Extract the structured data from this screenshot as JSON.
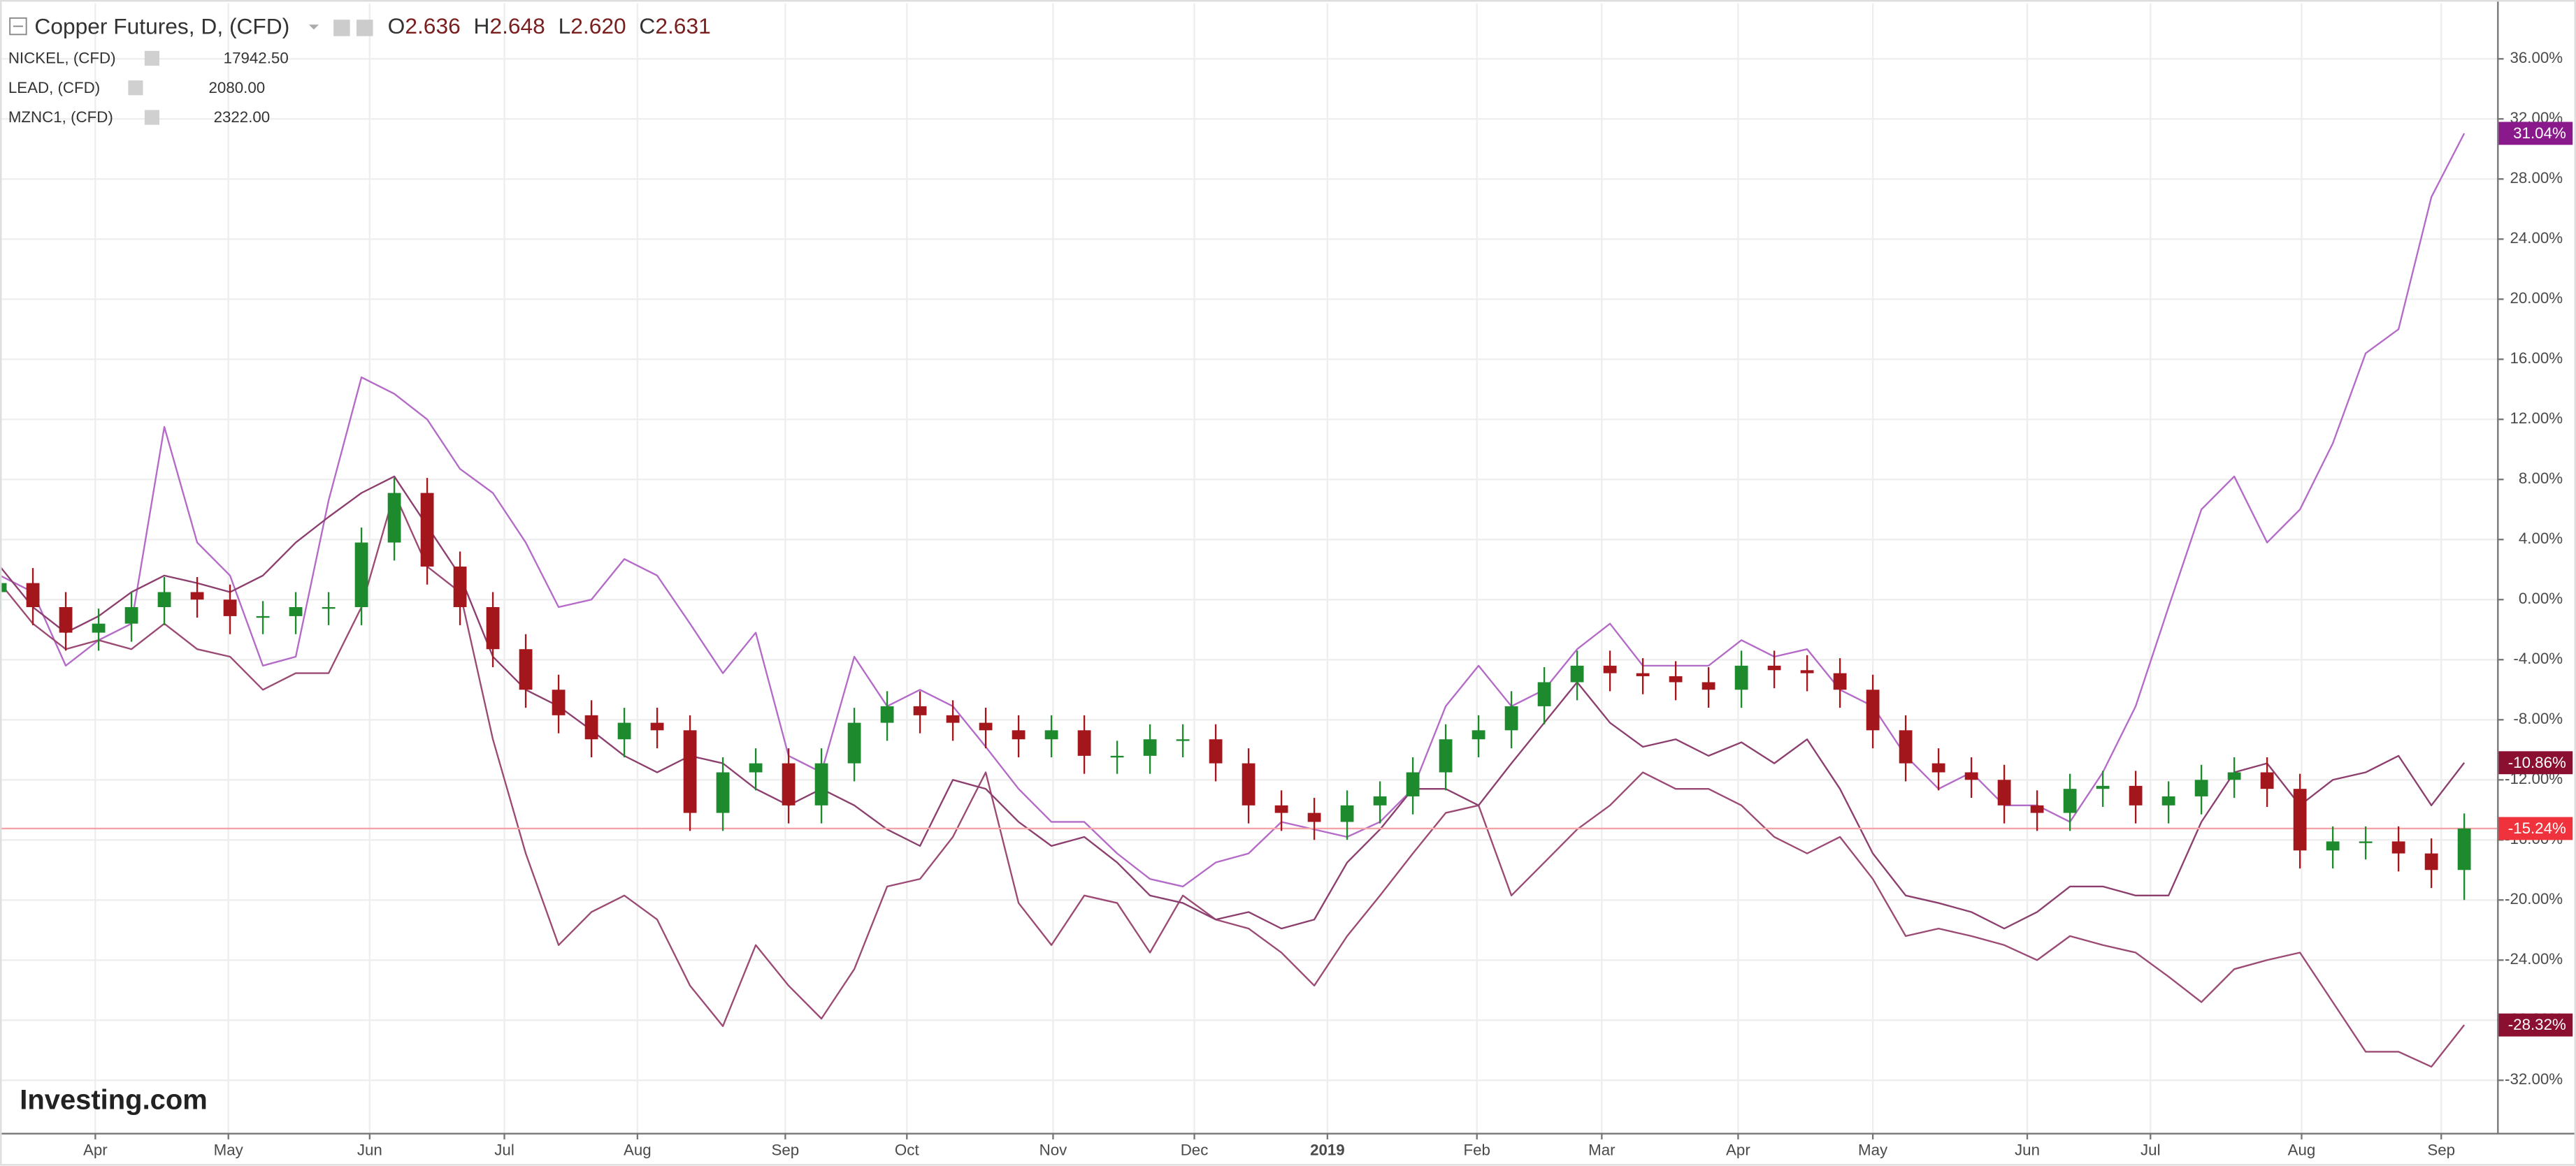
{
  "chart_data": {
    "type": "candlestick",
    "title": "Copper Futures, D, (CFD)",
    "quote": [
      {
        "label": "O",
        "value": "2.636"
      },
      {
        "label": "H",
        "value": "2.648"
      },
      {
        "label": "L",
        "value": "2.620"
      },
      {
        "label": "C",
        "value": "2.631"
      }
    ],
    "watermark": "Investing.com",
    "x": [
      0,
      1,
      2,
      3,
      4,
      5,
      6,
      7,
      8,
      9,
      10,
      11,
      12,
      13,
      14,
      15,
      16,
      17,
      18,
      19,
      20,
      21,
      22,
      23,
      24,
      25,
      26,
      27,
      28,
      29,
      30,
      31,
      32,
      33,
      34,
      35,
      36,
      37,
      38,
      39,
      40,
      41,
      42,
      43,
      44,
      45,
      46,
      47,
      48,
      49,
      50,
      51,
      52,
      53,
      54,
      55,
      56,
      57,
      58,
      59,
      60,
      61,
      62,
      63,
      64,
      65,
      66,
      67,
      68,
      69,
      70,
      71,
      72,
      73,
      74,
      75
    ],
    "xlim": [
      0,
      76
    ],
    "xticks": [
      {
        "value": 2.9,
        "label": "Apr"
      },
      {
        "value": 6.95,
        "label": "May"
      },
      {
        "value": 11.25,
        "label": "Jun"
      },
      {
        "value": 15.35,
        "label": "Jul"
      },
      {
        "value": 19.4,
        "label": "Aug"
      },
      {
        "value": 23.9,
        "label": "Sep"
      },
      {
        "value": 27.6,
        "label": "Oct"
      },
      {
        "value": 32.05,
        "label": "Nov"
      },
      {
        "value": 36.35,
        "label": "Dec"
      },
      {
        "value": 40.4,
        "label": "2019"
      },
      {
        "value": 44.95,
        "label": "Feb"
      },
      {
        "value": 48.75,
        "label": "Mar"
      },
      {
        "value": 52.9,
        "label": "Apr"
      },
      {
        "value": 57,
        "label": "May"
      },
      {
        "value": 61.7,
        "label": "Jun"
      },
      {
        "value": 65.45,
        "label": "Jul"
      },
      {
        "value": 70.05,
        "label": "Aug"
      },
      {
        "value": 74.3,
        "label": "Sep"
      }
    ],
    "ylim": [
      -35.5,
      39.7
    ],
    "yticks": [
      {
        "value": 36,
        "label": "36.00%"
      },
      {
        "value": 32,
        "label": "32.00%"
      },
      {
        "value": 28,
        "label": "28.00%"
      },
      {
        "value": 24,
        "label": "24.00%"
      },
      {
        "value": 20,
        "label": "20.00%"
      },
      {
        "value": 16,
        "label": "16.00%"
      },
      {
        "value": 12,
        "label": "12.00%"
      },
      {
        "value": 8,
        "label": "8.00%"
      },
      {
        "value": 4,
        "label": "4.00%"
      },
      {
        "value": 0,
        "label": "0.00%"
      },
      {
        "value": -4,
        "label": "-4.00%"
      },
      {
        "value": -8,
        "label": "-8.00%"
      },
      {
        "value": -12,
        "label": "-12.00%"
      },
      {
        "value": -16,
        "label": "-16.00%"
      },
      {
        "value": -20,
        "label": "-20.00%"
      },
      {
        "value": -24,
        "label": "-24.00%"
      },
      {
        "value": -28,
        "label": "-28.00%"
      },
      {
        "value": -32,
        "label": "-32.00%"
      }
    ],
    "grid": true,
    "candles": {
      "up_color": "#1e8a2e",
      "down_color": "#a3161c",
      "price_line_color": "#f4a3a8",
      "tag_color": "#f0323c",
      "open": [
        0.5,
        1.1,
        -0.5,
        -2.2,
        -1.6,
        -0.5,
        0.5,
        0,
        -1.1,
        -1.1,
        -0.5,
        -0.5,
        3.8,
        7.1,
        2.2,
        -0.5,
        -3.3,
        -6.0,
        -7.7,
        -9.3,
        -8.2,
        -8.7,
        -14.2,
        -11.5,
        -10.9,
        -13.7,
        -10.9,
        -8.2,
        -7.1,
        -7.7,
        -8.2,
        -8.7,
        -9.3,
        -8.7,
        -10.4,
        -10.4,
        -9.3,
        -9.3,
        -10.9,
        -13.7,
        -14.2,
        -14.8,
        -13.7,
        -13.1,
        -11.5,
        -9.3,
        -8.7,
        -7.1,
        -5.5,
        -4.4,
        -4.9,
        -5.1,
        -5.5,
        -6.0,
        -4.4,
        -4.7,
        -4.9,
        -6.0,
        -8.7,
        -10.9,
        -11.5,
        -12.0,
        -13.7,
        -14.2,
        -12.6,
        -12.4,
        -13.7,
        -13.1,
        -12.0,
        -11.5,
        -12.6,
        -16.7,
        -16.1,
        -16.1,
        -16.9,
        -18.0
      ],
      "high": [
        2.1,
        2.1,
        0.5,
        -0.6,
        0.5,
        1.5,
        1.5,
        1,
        -0.1,
        0.5,
        0.5,
        4.8,
        8.1,
        8.1,
        3.2,
        0.5,
        -2.3,
        -5,
        -6.7,
        -7.2,
        -7.2,
        -7.7,
        -10.5,
        -9.9,
        -9.9,
        -9.9,
        -7.2,
        -6.1,
        -6.1,
        -6.7,
        -7.2,
        -7.7,
        -7.7,
        -7.7,
        -9.4,
        -8.3,
        -8.3,
        -8.3,
        -9.9,
        -12.7,
        -13.2,
        -12.7,
        -12.1,
        -10.5,
        -8.3,
        -7.7,
        -6.1,
        -4.5,
        -3.4,
        -3.4,
        -3.9,
        -4.1,
        -4.5,
        -3.4,
        -3.4,
        -3.7,
        -3.9,
        -5.0,
        -7.7,
        -9.9,
        -10.5,
        -11.0,
        -12.7,
        -11.6,
        -11.4,
        -11.4,
        -12.1,
        -11.0,
        -10.5,
        -10.5,
        -11.6,
        -15.1,
        -15.1,
        -15.1,
        -15.9,
        -14.24
      ],
      "low": [
        -0.7,
        -1.7,
        -3.4,
        -3.4,
        -2.8,
        -1.7,
        -1.2,
        -2.3,
        -2.3,
        -2.3,
        -1.7,
        -1.7,
        2.6,
        1.0,
        -1.7,
        -4.5,
        -7.2,
        -8.9,
        -10.5,
        -10.5,
        -9.9,
        -15.4,
        -15.4,
        -12.7,
        -14.9,
        -14.9,
        -12.1,
        -9.4,
        -8.9,
        -9.4,
        -9.9,
        -10.5,
        -10.5,
        -11.6,
        -11.6,
        -11.6,
        -10.5,
        -12.1,
        -14.9,
        -15.4,
        -16.0,
        -16.0,
        -14.9,
        -14.3,
        -12.7,
        -10.5,
        -9.9,
        -8.3,
        -6.7,
        -6.1,
        -6.3,
        -6.7,
        -7.2,
        -7.2,
        -5.9,
        -6.1,
        -7.2,
        -9.9,
        -12.1,
        -12.7,
        -13.2,
        -14.9,
        -15.4,
        -15.4,
        -13.8,
        -14.9,
        -14.9,
        -14.3,
        -13.2,
        -13.8,
        -17.9,
        -17.9,
        -17.3,
        -18.1,
        -19.2,
        -20.0
      ],
      "close": [
        1.1,
        -0.5,
        -2.2,
        -1.6,
        -0.5,
        0.5,
        0,
        -1.1,
        -1.1,
        -0.5,
        -0.5,
        3.8,
        7.1,
        2.2,
        -0.5,
        -3.3,
        -6.0,
        -7.7,
        -9.3,
        -8.2,
        -8.7,
        -14.2,
        -11.5,
        -10.9,
        -13.7,
        -10.9,
        -8.2,
        -7.1,
        -7.7,
        -8.2,
        -8.7,
        -9.3,
        -8.7,
        -10.4,
        -10.4,
        -9.3,
        -9.3,
        -10.9,
        -13.7,
        -14.2,
        -14.8,
        -13.7,
        -13.1,
        -11.5,
        -9.3,
        -8.7,
        -7.1,
        -5.5,
        -4.4,
        -4.9,
        -5.1,
        -5.5,
        -6.0,
        -4.4,
        -4.7,
        -4.9,
        -6.0,
        -8.7,
        -10.9,
        -11.5,
        -12.0,
        -13.7,
        -14.2,
        -12.6,
        -12.4,
        -13.7,
        -13.1,
        -12.0,
        -11.5,
        -12.6,
        -16.7,
        -16.1,
        -16.1,
        -16.9,
        -18.0,
        -15.24
      ],
      "value_labels": [
        null,
        null,
        null,
        null,
        null,
        null,
        null,
        null,
        null,
        null,
        null,
        null,
        null,
        null,
        null,
        null,
        null,
        null,
        null,
        null,
        null,
        null,
        null,
        null,
        null,
        null,
        null,
        null,
        null,
        null,
        null,
        null,
        null,
        null,
        null,
        null,
        null,
        null,
        null,
        null,
        null,
        null,
        null,
        null,
        null,
        null,
        null,
        null,
        null,
        null,
        null,
        null,
        null,
        null,
        null,
        null,
        null,
        null,
        null,
        null,
        null,
        null,
        null,
        null,
        null,
        null,
        null,
        null,
        null,
        null,
        null,
        null,
        null,
        null,
        null,
        "-15.24%"
      ]
    },
    "series": [
      {
        "name": "NICKEL, (CFD)",
        "price": "17942.50",
        "color": "#b46ac7",
        "tag_color": "#8a1a8c",
        "values": [
          1.6,
          0.5,
          -4.4,
          -2.7,
          -1.6,
          11.5,
          3.8,
          1.6,
          -4.4,
          -3.8,
          6.6,
          14.8,
          13.7,
          12.0,
          8.7,
          7.1,
          3.8,
          -0.5,
          0,
          2.7,
          1.6,
          -1.6,
          -4.9,
          -2.2,
          -10.4,
          -11.5,
          -3.8,
          -7.1,
          -6.0,
          -7.1,
          -9.8,
          -12.6,
          -14.8,
          -14.8,
          -16.9,
          -18.6,
          -19.1,
          -17.5,
          -16.9,
          -14.8,
          -15.3,
          -15.8,
          -14.8,
          -12.6,
          -7.1,
          -4.4,
          -7.1,
          -6.0,
          -3.3,
          -1.6,
          -4.4,
          -4.4,
          -4.4,
          -2.7,
          -3.8,
          -3.3,
          -6.0,
          -7.1,
          -10.4,
          -12.6,
          -11.5,
          -13.7,
          -13.7,
          -14.8,
          -11.5,
          -7.1,
          -0.5,
          6.0,
          8.2,
          3.8,
          6.0,
          10.4,
          16.4,
          18.0,
          26.8,
          31.04
        ],
        "value_labels": [
          null,
          null,
          null,
          null,
          null,
          null,
          null,
          null,
          null,
          null,
          null,
          null,
          null,
          null,
          null,
          null,
          null,
          null,
          null,
          null,
          null,
          null,
          null,
          null,
          null,
          null,
          null,
          null,
          null,
          null,
          null,
          null,
          null,
          null,
          null,
          null,
          null,
          null,
          null,
          null,
          null,
          null,
          null,
          null,
          null,
          null,
          null,
          null,
          null,
          null,
          null,
          null,
          null,
          null,
          null,
          null,
          null,
          null,
          null,
          null,
          null,
          null,
          null,
          null,
          null,
          null,
          null,
          null,
          null,
          null,
          null,
          null,
          null,
          null,
          null,
          "31.04%"
        ]
      },
      {
        "name": "LEAD, (CFD)",
        "price": "2080.00",
        "color": "#9b4a74",
        "tag_color": "#8a0f30",
        "values": [
          1.1,
          -1.6,
          -3.3,
          -2.7,
          -3.3,
          -1.6,
          -3.3,
          -3.8,
          -6.0,
          -4.9,
          -4.9,
          -0.5,
          7.1,
          2.2,
          0.5,
          -9.3,
          -16.9,
          -23.0,
          -20.8,
          -19.7,
          -21.3,
          -25.7,
          -28.4,
          -23.0,
          -25.7,
          -27.9,
          -24.6,
          -19.1,
          -18.6,
          -15.8,
          -11.5,
          -20.2,
          -23.0,
          -19.7,
          -20.2,
          -23.5,
          -19.7,
          -21.3,
          -21.9,
          -23.5,
          -25.7,
          -22.4,
          -19.7,
          -16.9,
          -14.2,
          -13.7,
          -19.7,
          -17.5,
          -15.3,
          -13.7,
          -11.5,
          -12.6,
          -12.6,
          -13.7,
          -15.8,
          -16.9,
          -15.8,
          -18.6,
          -22.4,
          -21.9,
          -22.4,
          -23.0,
          -24.0,
          -22.4,
          -23.0,
          -23.5,
          -25.1,
          -26.8,
          -24.6,
          -24.0,
          -23.5,
          -26.8,
          -30.1,
          -30.1,
          -31.1,
          -28.32
        ],
        "value_labels": [
          null,
          null,
          null,
          null,
          null,
          null,
          null,
          null,
          null,
          null,
          null,
          null,
          null,
          null,
          null,
          null,
          null,
          null,
          null,
          null,
          null,
          null,
          null,
          null,
          null,
          null,
          null,
          null,
          null,
          null,
          null,
          null,
          null,
          null,
          null,
          null,
          null,
          null,
          null,
          null,
          null,
          null,
          null,
          null,
          null,
          null,
          null,
          null,
          null,
          null,
          null,
          null,
          null,
          null,
          null,
          null,
          null,
          null,
          null,
          null,
          null,
          null,
          null,
          null,
          null,
          null,
          null,
          null,
          null,
          null,
          null,
          null,
          null,
          null,
          null,
          "-28.32%"
        ]
      },
      {
        "name": "MZNC1, (CFD)",
        "price": "2322.00",
        "color": "#8c3f6e",
        "tag_color": "#8a0f30",
        "values": [
          2.2,
          -0.5,
          -2.2,
          -1.1,
          0.5,
          1.6,
          1.1,
          0.5,
          1.6,
          3.8,
          5.5,
          7.1,
          8.2,
          4.9,
          1.6,
          -3.8,
          -6.0,
          -7.1,
          -8.7,
          -10.4,
          -11.5,
          -10.4,
          -10.9,
          -12.6,
          -13.7,
          -12.6,
          -13.7,
          -15.3,
          -16.4,
          -12.0,
          -12.6,
          -14.8,
          -16.4,
          -15.8,
          -17.5,
          -19.7,
          -20.2,
          -21.3,
          -20.8,
          -21.9,
          -21.3,
          -17.5,
          -15.3,
          -12.6,
          -12.6,
          -13.7,
          -10.9,
          -8.2,
          -5.5,
          -8.2,
          -9.8,
          -9.3,
          -10.4,
          -9.5,
          -10.9,
          -9.3,
          -12.6,
          -16.9,
          -19.7,
          -20.2,
          -20.8,
          -21.9,
          -20.8,
          -19.1,
          -19.1,
          -19.7,
          -19.7,
          -14.8,
          -11.5,
          -10.9,
          -13.7,
          -12.0,
          -11.5,
          -10.4,
          -13.7,
          -10.86
        ],
        "value_labels": [
          null,
          null,
          null,
          null,
          null,
          null,
          null,
          null,
          null,
          null,
          null,
          null,
          null,
          null,
          null,
          null,
          null,
          null,
          null,
          null,
          null,
          null,
          null,
          null,
          null,
          null,
          null,
          null,
          null,
          null,
          null,
          null,
          null,
          null,
          null,
          null,
          null,
          null,
          null,
          null,
          null,
          null,
          null,
          null,
          null,
          null,
          null,
          null,
          null,
          null,
          null,
          null,
          null,
          null,
          null,
          null,
          null,
          null,
          null,
          null,
          null,
          null,
          null,
          null,
          null,
          null,
          null,
          null,
          null,
          null,
          null,
          null,
          null,
          null,
          null,
          "-10.86%"
        ]
      }
    ]
  }
}
